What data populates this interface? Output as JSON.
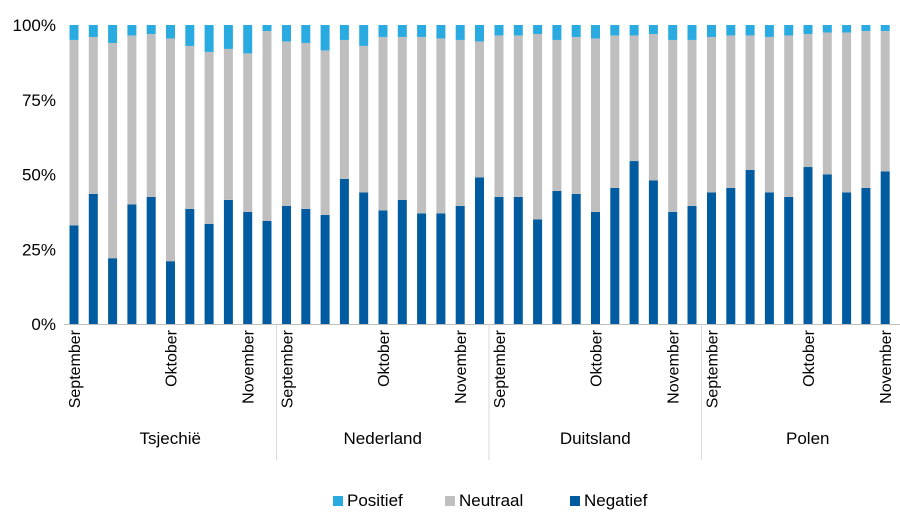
{
  "chart_data": {
    "type": "bar",
    "stacked": true,
    "title": "",
    "xlabel": "",
    "ylabel": "",
    "ylim": [
      0,
      100
    ],
    "yticks": [
      "0%",
      "25%",
      "50%",
      "75%",
      "100%"
    ],
    "legend": {
      "placement": "bottom",
      "entries": [
        "Positief",
        "Neutraal",
        "Negatief"
      ]
    },
    "colors": {
      "Positief": "#29abe2",
      "Neutraal": "#bfbfbf",
      "Negatief": "#005ba1"
    },
    "groups": [
      {
        "name": "Tsjechië",
        "month_labels": [
          {
            "label": "September",
            "bar": 0
          },
          {
            "label": "Oktober",
            "bar": 5
          },
          {
            "label": "November",
            "bar": 9
          }
        ],
        "negatief": [
          33,
          43.5,
          22,
          40,
          42.5,
          21,
          38.5,
          33.5,
          41.5,
          37.5,
          34.5
        ],
        "neutraal": [
          62,
          52.5,
          72,
          56.5,
          54.5,
          74.5,
          54.5,
          57.5,
          50.5,
          53,
          63.5
        ],
        "positief": [
          5,
          4,
          6,
          3.5,
          3,
          4.5,
          7,
          9,
          8,
          9.5,
          2
        ]
      },
      {
        "name": "Nederland",
        "month_labels": [
          {
            "label": "September",
            "bar": 0
          },
          {
            "label": "Oktober",
            "bar": 5
          },
          {
            "label": "November",
            "bar": 9
          }
        ],
        "negatief": [
          39.5,
          38.5,
          36.5,
          48.5,
          44,
          38,
          41.5,
          37,
          37,
          39.5,
          49
        ],
        "neutraal": [
          55,
          55.5,
          55,
          46.5,
          49,
          58,
          54.5,
          59,
          58.5,
          55.5,
          45.5
        ],
        "positief": [
          5.5,
          6,
          8.5,
          5,
          7,
          4,
          4,
          4,
          4.5,
          5,
          5.5
        ]
      },
      {
        "name": "Duitsland",
        "month_labels": [
          {
            "label": "September",
            "bar": 0
          },
          {
            "label": "Oktober",
            "bar": 5
          },
          {
            "label": "November",
            "bar": 9
          }
        ],
        "negatief": [
          42.5,
          42.5,
          35,
          44.5,
          43.5,
          37.5,
          45.5,
          54.5,
          48,
          37.5,
          39.5
        ],
        "neutraal": [
          54,
          54,
          62,
          50.5,
          52.5,
          58,
          51,
          42,
          49,
          57.5,
          55.5
        ],
        "positief": [
          3.5,
          3.5,
          3,
          5,
          4,
          4.5,
          3.5,
          3.5,
          3,
          5,
          5
        ]
      },
      {
        "name": "Polen",
        "month_labels": [
          {
            "label": "September",
            "bar": 0
          },
          {
            "label": "Oktober",
            "bar": 5
          },
          {
            "label": "November",
            "bar": 9
          }
        ],
        "negatief": [
          44,
          45.5,
          51.5,
          44,
          42.5,
          52.5,
          50,
          44,
          45.5,
          51,
          47
        ],
        "neutraal": [
          52,
          51,
          45,
          52,
          54,
          44.5,
          47.5,
          53.5,
          52.5,
          47,
          51.5
        ],
        "positief": [
          4,
          3.5,
          3.5,
          4,
          3.5,
          3,
          2.5,
          2.5,
          2,
          2,
          1.5
        ]
      }
    ]
  }
}
